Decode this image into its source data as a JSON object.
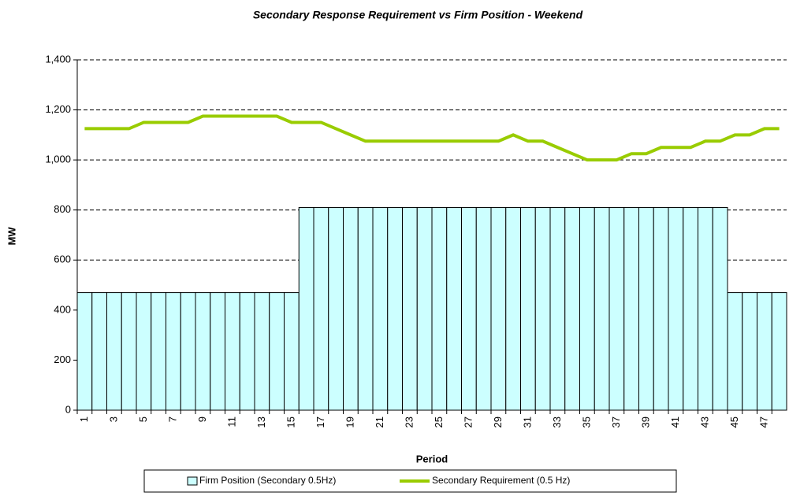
{
  "chart_data": {
    "type": "bar-line",
    "title": "Secondary Response Requirement vs Firm Position - Weekend",
    "x_label": "Period",
    "y_label": "MW",
    "categories": [
      "1",
      null,
      "3",
      null,
      "5",
      null,
      "7",
      null,
      "9",
      null,
      "11",
      null,
      "13",
      null,
      "15",
      null,
      "17",
      null,
      "19",
      null,
      "21",
      null,
      "23",
      null,
      "25",
      null,
      "27",
      null,
      "29",
      null,
      "31",
      null,
      "33",
      null,
      "35",
      null,
      "37",
      null,
      "39",
      null,
      "41",
      null,
      "43",
      null,
      "45",
      null,
      "47",
      null
    ],
    "series": [
      {
        "name": "Firm Position (Secondary 0.5Hz)",
        "type": "bar",
        "color": "#ccffff",
        "values": [
          470,
          470,
          470,
          470,
          470,
          470,
          470,
          470,
          470,
          470,
          470,
          470,
          470,
          470,
          470,
          810,
          810,
          810,
          810,
          810,
          810,
          810,
          810,
          810,
          810,
          810,
          810,
          810,
          810,
          810,
          810,
          810,
          810,
          810,
          810,
          810,
          810,
          810,
          810,
          810,
          810,
          810,
          810,
          810,
          470,
          470,
          470,
          470
        ]
      },
      {
        "name": "Secondary Requirement (0.5 Hz)",
        "type": "line",
        "color": "#99cc00",
        "values": [
          1125,
          1125,
          1125,
          1125,
          1150,
          1150,
          1150,
          1150,
          1175,
          1175,
          1175,
          1175,
          1175,
          1175,
          1150,
          1150,
          1150,
          1125,
          1100,
          1075,
          1075,
          1075,
          1075,
          1075,
          1075,
          1075,
          1075,
          1075,
          1075,
          1100,
          1075,
          1075,
          1050,
          1025,
          1000,
          1000,
          1000,
          1025,
          1025,
          1050,
          1050,
          1050,
          1075,
          1075,
          1100,
          1100,
          1125,
          1125
        ]
      }
    ],
    "ylim": [
      0,
      1400
    ],
    "yticks": [
      0,
      200,
      400,
      600,
      800,
      {
        "value": 1000,
        "label": "1,000"
      },
      {
        "value": 1200,
        "label": "1,200"
      },
      {
        "value": 1400,
        "label": "1,400"
      }
    ],
    "grid": true
  }
}
